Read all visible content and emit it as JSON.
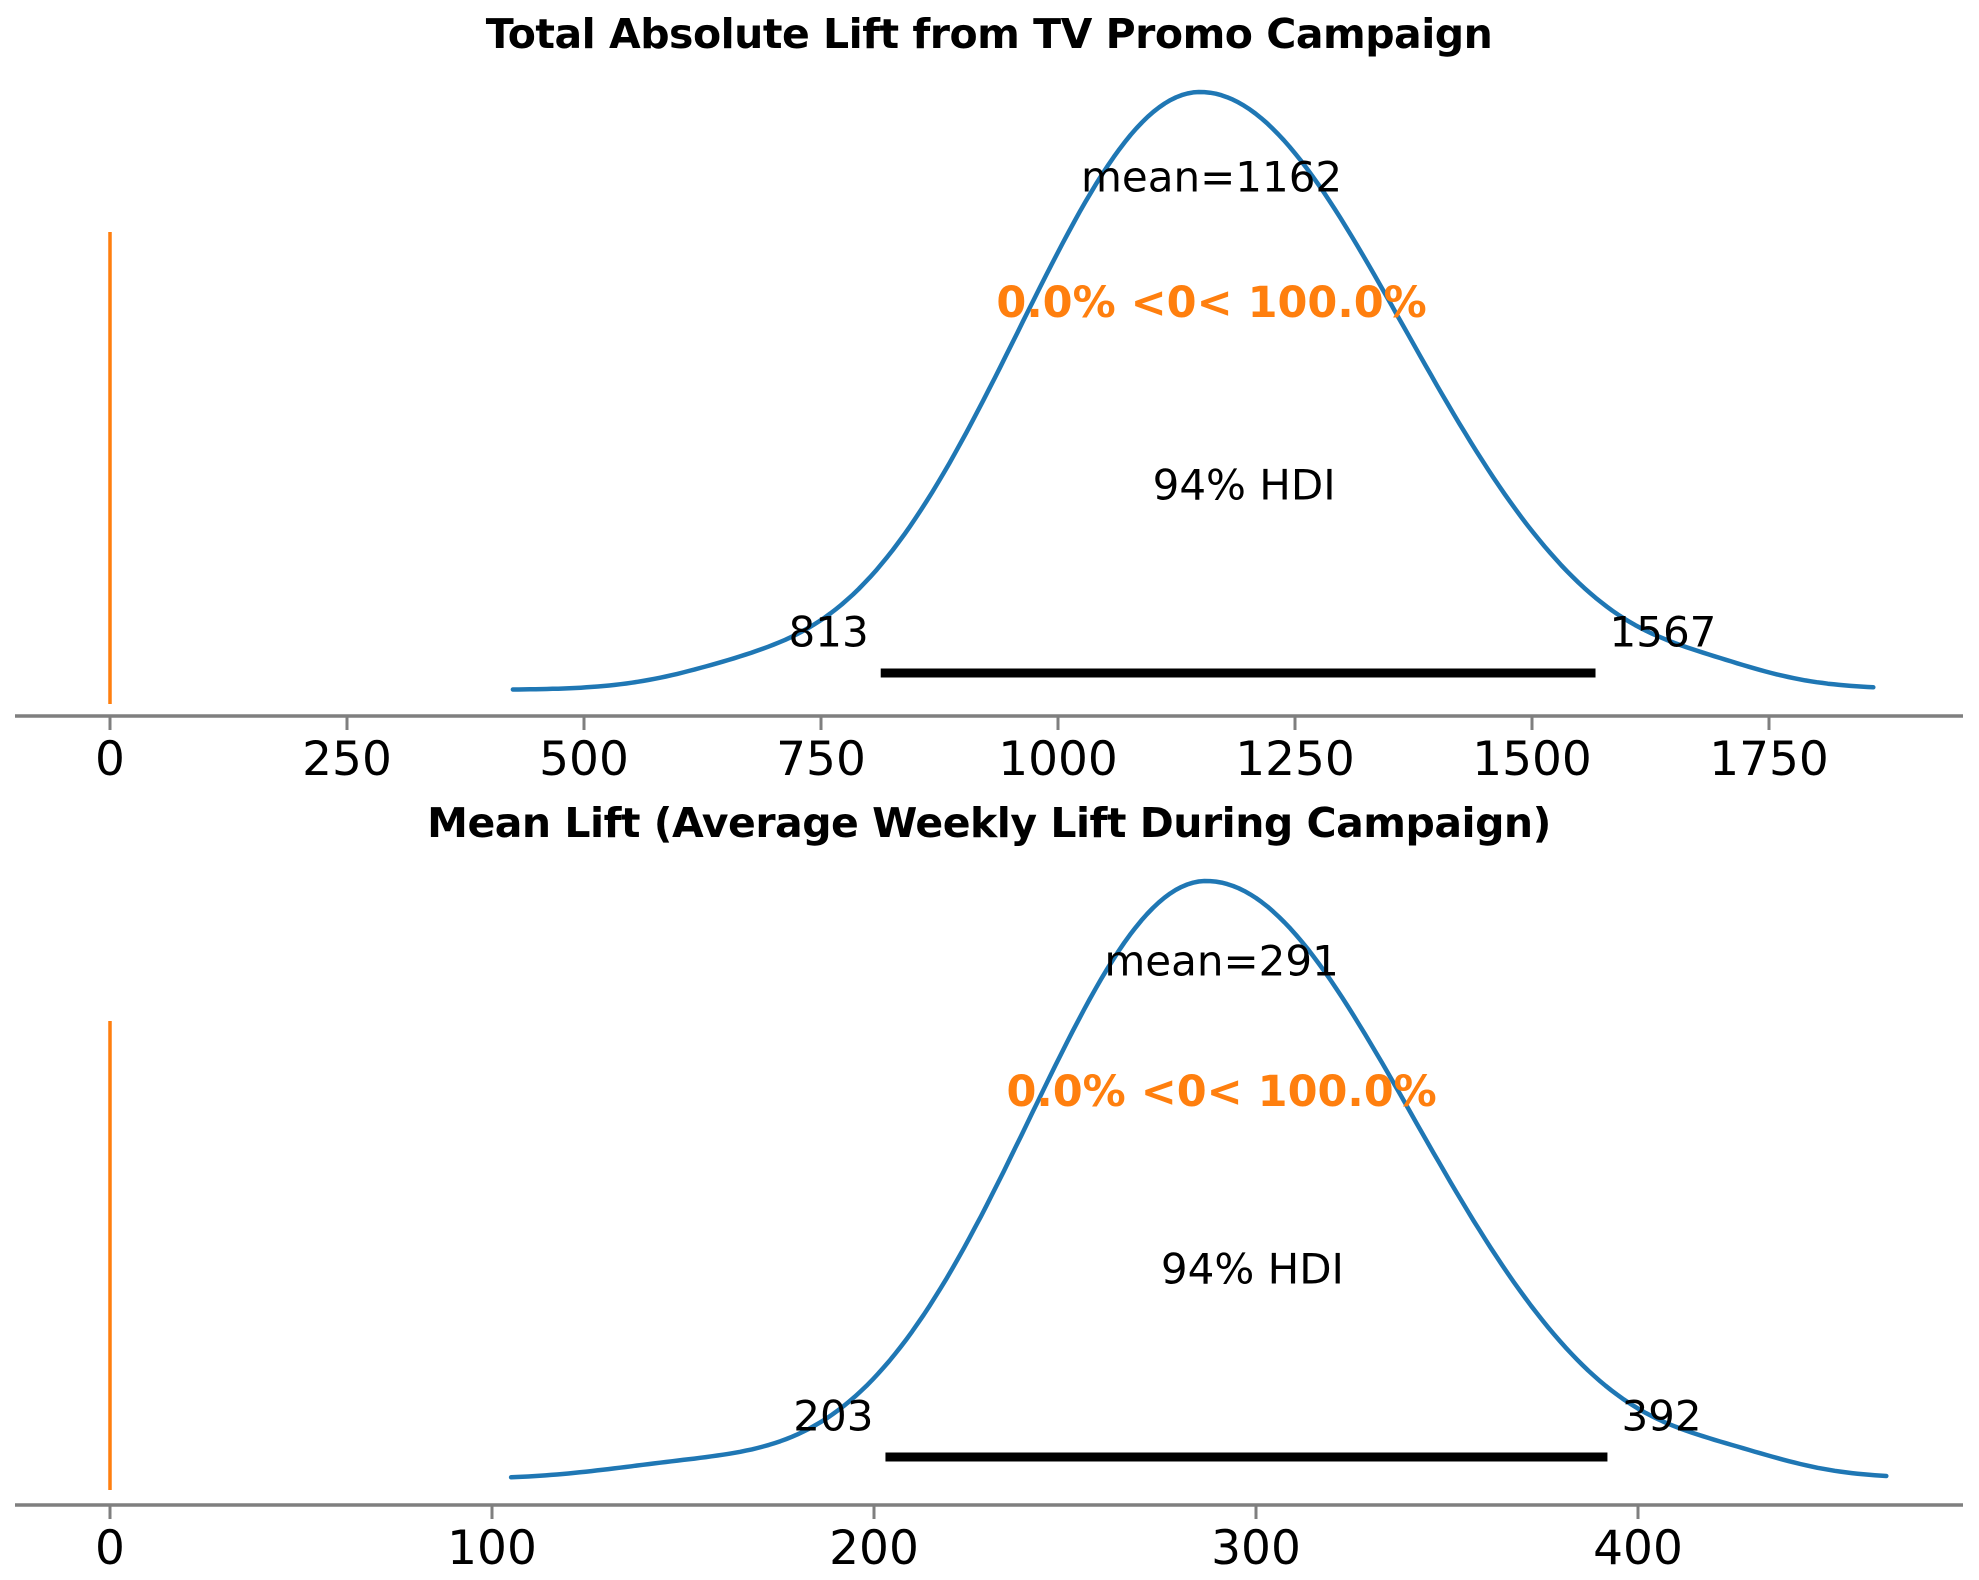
{
  "page": {
    "background": "#ffffff"
  },
  "colors": {
    "curve": "#1f77b4",
    "ref_line": "#ff7f0e",
    "ref_text": "#ff7f0e",
    "hdi_bar": "#000000",
    "axis": "#7f7f7f",
    "text": "#000000"
  },
  "chart_data": [
    {
      "type": "kde",
      "title": "Total Absolute Lift from TV Promo Campaign",
      "mean": 1162,
      "mean_label": "mean=1162",
      "hdi_probability": "94%",
      "hdi_label": "94% HDI",
      "hdi_low": 813,
      "hdi_high": 1567,
      "hdi_low_label": "813",
      "hdi_high_label": "1567",
      "ref_value": 0,
      "ref_label": "0.0% <0< 100.0%",
      "xticks": [
        0,
        250,
        500,
        750,
        1000,
        1250,
        1500,
        1750
      ],
      "xtick_labels": [
        "0",
        "250",
        "500",
        "750",
        "1000",
        "1250",
        "1500",
        "1750"
      ],
      "kde": {
        "min": 425,
        "max": 1860,
        "peak": 1150,
        "sigma_left": 190,
        "sigma_right": 215,
        "bumps": [
          {
            "center": 660,
            "sigma": 70,
            "amp": 0.018
          },
          {
            "center": 1690,
            "sigma": 60,
            "amp": 0.015
          }
        ]
      }
    },
    {
      "type": "kde",
      "title": "Mean Lift (Average Weekly Lift During Campaign)",
      "mean": 291,
      "mean_label": "mean=291",
      "hdi_probability": "94%",
      "hdi_label": "94% HDI",
      "hdi_low": 203,
      "hdi_high": 392,
      "hdi_low_label": "203",
      "hdi_high_label": "392",
      "ref_value": 0,
      "ref_label": "0.0% <0< 100.0%",
      "xticks": [
        0,
        100,
        200,
        300,
        400
      ],
      "xtick_labels": [
        "0",
        "100",
        "200",
        "300",
        "400"
      ],
      "kde": {
        "min": 105,
        "max": 465,
        "peak": 287,
        "sigma_left": 46,
        "sigma_right": 54,
        "bumps": [
          {
            "center": 150,
            "sigma": 22,
            "amp": 0.02
          },
          {
            "center": 424,
            "sigma": 16,
            "amp": 0.018
          }
        ]
      }
    }
  ]
}
